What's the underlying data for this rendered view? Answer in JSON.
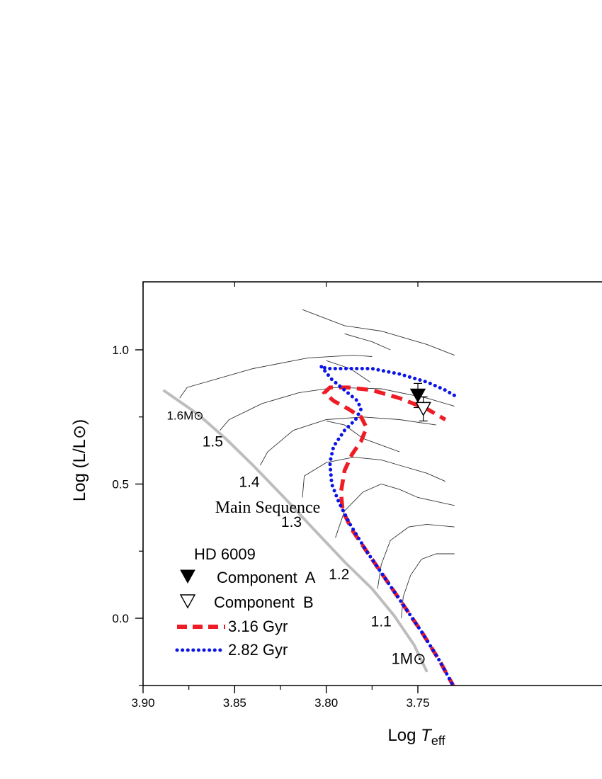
{
  "chart_data": {
    "type": "line",
    "title": "",
    "xlabel_main": "Log ",
    "xlabel_italic": "T",
    "xlabel_sub": "eff",
    "ylabel": "Log (L/L⊙)",
    "xlim": [
      3.9,
      3.73
    ],
    "ylim": [
      -0.25,
      1.25
    ],
    "x_reversed": true,
    "x_ticks": [
      3.9,
      3.85,
      3.8,
      3.75
    ],
    "x_tick_labels": [
      "3.90",
      "3.85",
      "3.80",
      "3.75"
    ],
    "y_ticks": [
      0.0,
      0.5,
      1.0
    ],
    "y_tick_labels": [
      "0.0",
      "0.5",
      "1.0"
    ],
    "grid": false,
    "legend_position": "bottom-left",
    "legend_title": "HD 6009",
    "main_sequence_label": "Main Sequence",
    "mass_labels": [
      {
        "text": "1.6M⊙",
        "x": 3.877,
        "y": 0.74
      },
      {
        "text": "1.5",
        "x": 3.862,
        "y": 0.64
      },
      {
        "text": "1.4",
        "x": 3.842,
        "y": 0.49
      },
      {
        "text": "1.3",
        "x": 3.819,
        "y": 0.34
      },
      {
        "text": "1.2",
        "x": 3.793,
        "y": 0.145
      },
      {
        "text": "1.1",
        "x": 3.77,
        "y": -0.03
      },
      {
        "text": "1M⊙",
        "x": 3.755,
        "y": -0.17
      }
    ],
    "main_sequence": {
      "x": [
        3.889,
        3.87,
        3.855,
        3.84,
        3.823,
        3.808,
        3.79,
        3.775,
        3.763,
        3.752,
        3.745
      ],
      "y": [
        0.85,
        0.76,
        0.67,
        0.57,
        0.45,
        0.34,
        0.21,
        0.11,
        0.01,
        -0.1,
        -0.2
      ]
    },
    "tracks": [
      {
        "x": [
          3.88,
          3.876,
          3.84,
          3.81,
          3.785,
          3.775
        ],
        "y": [
          0.82,
          0.86,
          0.93,
          0.97,
          0.98,
          0.975
        ]
      },
      {
        "x": [
          3.858,
          3.853,
          3.835,
          3.815,
          3.795,
          3.77,
          3.745,
          3.73
        ],
        "y": [
          0.7,
          0.74,
          0.8,
          0.84,
          0.86,
          0.855,
          0.82,
          0.79
        ]
      },
      {
        "x": [
          3.836,
          3.832,
          3.818,
          3.8,
          3.78,
          3.76,
          3.74
        ],
        "y": [
          0.57,
          0.62,
          0.7,
          0.74,
          0.75,
          0.74,
          0.72
        ]
      },
      {
        "x": [
          3.813,
          3.812,
          3.8,
          3.785,
          3.77,
          3.76,
          3.745,
          3.735
        ],
        "y": [
          0.45,
          0.53,
          0.58,
          0.6,
          0.59,
          0.57,
          0.54,
          0.51
        ]
      },
      {
        "x": [
          3.795,
          3.79,
          3.78,
          3.77,
          3.76,
          3.75,
          3.73
        ],
        "y": [
          0.3,
          0.4,
          0.47,
          0.5,
          0.48,
          0.45,
          0.42
        ]
      },
      {
        "x": [
          3.772,
          3.77,
          3.765,
          3.755,
          3.745,
          3.73
        ],
        "y": [
          0.11,
          0.2,
          0.29,
          0.34,
          0.35,
          0.34
        ]
      },
      {
        "x": [
          3.759,
          3.758,
          3.754,
          3.748,
          3.74,
          3.73
        ],
        "y": [
          0.0,
          0.08,
          0.16,
          0.22,
          0.24,
          0.24
        ]
      },
      {
        "x": [
          3.813,
          3.79,
          3.77,
          3.745,
          3.73
        ],
        "y": [
          1.15,
          1.09,
          1.07,
          1.02,
          0.98
        ]
      },
      {
        "x": [
          3.79,
          3.775,
          3.765
        ],
        "y": [
          1.06,
          1.03,
          1.0
        ]
      },
      {
        "x": [
          3.8,
          3.787,
          3.776
        ],
        "y": [
          0.96,
          0.93,
          0.88
        ]
      },
      {
        "x": [
          3.8,
          3.79,
          3.78,
          3.76
        ],
        "y": [
          0.735,
          0.72,
          0.67,
          0.62
        ]
      }
    ],
    "series": [
      {
        "name": "3.16 Gyr",
        "color": "#ee1c25",
        "style": "dashed",
        "x": [
          3.73,
          3.738,
          3.748,
          3.758,
          3.768,
          3.778,
          3.786,
          3.791,
          3.792,
          3.79,
          3.786,
          3.781,
          3.778,
          3.781,
          3.788,
          3.796,
          3.801,
          3.798,
          3.788,
          3.775,
          3.76,
          3.745,
          3.735
        ],
        "y": [
          -0.26,
          -0.16,
          -0.05,
          0.05,
          0.15,
          0.25,
          0.33,
          0.4,
          0.47,
          0.55,
          0.61,
          0.66,
          0.71,
          0.75,
          0.78,
          0.81,
          0.84,
          0.86,
          0.86,
          0.85,
          0.82,
          0.78,
          0.74
        ]
      },
      {
        "name": "2.82 Gyr",
        "color": "#0a14e6",
        "style": "dotted",
        "x": [
          3.73,
          3.738,
          3.748,
          3.758,
          3.768,
          3.778,
          3.787,
          3.793,
          3.797,
          3.798,
          3.796,
          3.79,
          3.784,
          3.781,
          3.783,
          3.79,
          3.797,
          3.803,
          3.8,
          3.79,
          3.775,
          3.76,
          3.745,
          3.735,
          3.73
        ],
        "y": [
          -0.26,
          -0.16,
          -0.05,
          0.05,
          0.15,
          0.25,
          0.35,
          0.43,
          0.5,
          0.58,
          0.64,
          0.7,
          0.74,
          0.78,
          0.81,
          0.85,
          0.89,
          0.94,
          0.93,
          0.93,
          0.93,
          0.91,
          0.88,
          0.85,
          0.83
        ]
      }
    ],
    "observations": [
      {
        "name": "Component  A",
        "marker": "filled-triangle-down",
        "x": 3.75,
        "y": 0.83,
        "yerr": 0.045
      },
      {
        "name": "Component  B",
        "marker": "open-triangle-down",
        "x": 3.747,
        "y": 0.78,
        "yerr": 0.045
      }
    ],
    "colors": {
      "main_sequence": "#bdbdbd",
      "tracks": "#333333"
    }
  }
}
